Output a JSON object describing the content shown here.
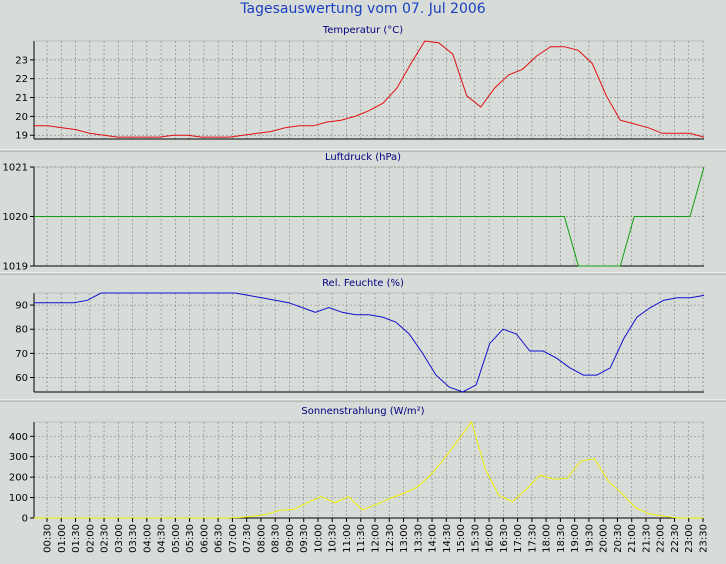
{
  "page_title": "Tagesauswertung vom 07. Jul 2006",
  "chart_data": [
    {
      "type": "line",
      "title": "Temperatur (°C)",
      "color": "#e01010",
      "ylim": [
        18.8,
        24.0
      ],
      "yticks": [
        19,
        20,
        21,
        22,
        23
      ],
      "values": [
        19.5,
        19.5,
        19.4,
        19.3,
        19.1,
        19.0,
        18.9,
        18.9,
        18.9,
        18.9,
        19.0,
        19.0,
        18.9,
        18.9,
        18.9,
        19.0,
        19.1,
        19.2,
        19.4,
        19.5,
        19.5,
        19.7,
        19.8,
        20.0,
        20.3,
        20.7,
        21.5,
        22.8,
        24.0,
        23.9,
        23.3,
        21.1,
        20.5,
        21.5,
        22.2,
        22.5,
        23.2,
        23.7,
        23.7,
        23.5,
        22.8,
        21.1,
        19.8,
        19.6,
        19.4,
        19.1,
        19.1,
        19.1,
        18.9
      ]
    },
    {
      "type": "line",
      "title": "Luftdruck (hPa)",
      "color": "#10a010",
      "ylim": [
        1019,
        1021
      ],
      "yticks": [
        1019,
        1020,
        1021
      ],
      "values": [
        1020,
        1020,
        1020,
        1020,
        1020,
        1020,
        1020,
        1020,
        1020,
        1020,
        1020,
        1020,
        1020,
        1020,
        1020,
        1020,
        1020,
        1020,
        1020,
        1020,
        1020,
        1020,
        1020,
        1020,
        1020,
        1020,
        1020,
        1020,
        1020,
        1020,
        1020,
        1020,
        1020,
        1020,
        1020,
        1020,
        1020,
        1020,
        1020,
        1019,
        1019,
        1019,
        1019,
        1020,
        1020,
        1020,
        1020,
        1020,
        1021
      ]
    },
    {
      "type": "line",
      "title": "Rel. Feuchte (%)",
      "color": "#1010d0",
      "ylim": [
        54,
        95
      ],
      "yticks": [
        60,
        70,
        80,
        90
      ],
      "values": [
        91,
        91,
        91,
        91,
        92,
        95,
        95,
        95,
        95,
        95,
        95,
        95,
        95,
        95,
        95,
        95,
        94,
        93,
        92,
        91,
        89,
        87,
        89,
        87,
        86,
        86,
        85,
        83,
        78,
        70,
        61,
        56,
        54,
        57,
        74,
        80,
        78,
        71,
        71,
        68,
        64,
        61,
        61,
        64,
        76,
        85,
        89,
        92,
        93,
        93,
        94
      ]
    },
    {
      "type": "line",
      "title": "Sonnenstrahlung (W/m²)",
      "color": "#f0f000",
      "ylim": [
        0,
        470
      ],
      "yticks": [
        0,
        100,
        200,
        300,
        400
      ],
      "values": [
        0,
        0,
        0,
        0,
        0,
        0,
        0,
        0,
        0,
        0,
        0,
        0,
        0,
        0,
        0,
        2,
        8,
        18,
        38,
        42,
        75,
        105,
        75,
        105,
        40,
        65,
        95,
        120,
        150,
        210,
        290,
        380,
        470,
        240,
        110,
        80,
        140,
        210,
        190,
        195,
        280,
        290,
        180,
        120,
        50,
        20,
        10,
        0,
        0,
        0
      ]
    }
  ],
  "x_ticks": [
    "00:30",
    "01:00",
    "01:30",
    "02:00",
    "02:30",
    "03:00",
    "03:30",
    "04:00",
    "04:30",
    "05:00",
    "05:30",
    "06:00",
    "06:30",
    "07:00",
    "07:30",
    "08:00",
    "08:30",
    "09:00",
    "09:30",
    "10:00",
    "10:30",
    "11:00",
    "11:30",
    "12:00",
    "12:30",
    "13:00",
    "13:30",
    "14:00",
    "14:30",
    "15:00",
    "15:30",
    "16:00",
    "16:30",
    "17:00",
    "17:30",
    "18:00",
    "18:30",
    "19:00",
    "19:30",
    "20:00",
    "20:30",
    "21:00",
    "21:30",
    "22:00",
    "22:30",
    "23:00",
    "23:30"
  ],
  "colors": {
    "plot_bg": "#d8dcd8",
    "grid": "#8c8c8c",
    "axis": "#000000",
    "title_text": "#000080"
  }
}
